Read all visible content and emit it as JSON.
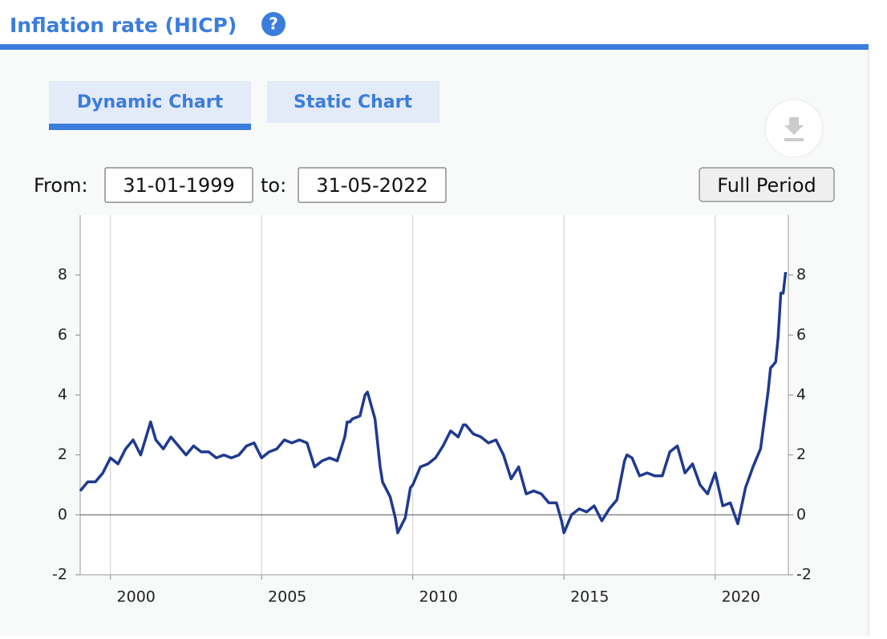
{
  "header": {
    "title": "Inflation rate (HICP)",
    "help": "?"
  },
  "tabs": [
    "Dynamic Chart",
    "Static Chart"
  ],
  "controls": {
    "from_label": "From:",
    "from": "31-01-1999",
    "to_label": "to:",
    "to": "31-05-2022",
    "button": "Full Period"
  },
  "chart_data": {
    "type": "line",
    "x": [
      1999.0,
      1999.25,
      1999.5,
      1999.75,
      2000.0,
      2000.25,
      2000.5,
      2000.75,
      2001.0,
      2001.33,
      2001.5,
      2001.75,
      2002.0,
      2002.25,
      2002.5,
      2002.75,
      2003.0,
      2003.25,
      2003.5,
      2003.75,
      2004.0,
      2004.25,
      2004.5,
      2004.75,
      2005.0,
      2005.25,
      2005.5,
      2005.75,
      2006.0,
      2006.25,
      2006.5,
      2006.75,
      2007.0,
      2007.25,
      2007.5,
      2007.75,
      2007.83,
      2007.92,
      2008.0,
      2008.25,
      2008.42,
      2008.5,
      2008.75,
      2008.92,
      2009.0,
      2009.25,
      2009.42,
      2009.5,
      2009.75,
      2009.92,
      2010.0,
      2010.25,
      2010.5,
      2010.75,
      2011.0,
      2011.25,
      2011.5,
      2011.67,
      2011.75,
      2012.0,
      2012.25,
      2012.5,
      2012.75,
      2013.0,
      2013.25,
      2013.5,
      2013.75,
      2014.0,
      2014.25,
      2014.5,
      2014.75,
      2014.92,
      2015.0,
      2015.25,
      2015.5,
      2015.75,
      2016.0,
      2016.25,
      2016.5,
      2016.75,
      2017.0,
      2017.08,
      2017.25,
      2017.5,
      2017.75,
      2018.0,
      2018.25,
      2018.5,
      2018.75,
      2019.0,
      2019.25,
      2019.5,
      2019.75,
      2020.0,
      2020.25,
      2020.5,
      2020.75,
      2021.0,
      2021.25,
      2021.5,
      2021.75,
      2021.83,
      2021.92,
      2022.0,
      2022.08,
      2022.17,
      2022.25,
      2022.33
    ],
    "series": [
      {
        "color": "#1f3a8f",
        "values": [
          0.8,
          1.1,
          1.1,
          1.4,
          1.9,
          1.7,
          2.2,
          2.5,
          2.0,
          3.1,
          2.5,
          2.2,
          2.6,
          2.3,
          2.0,
          2.3,
          2.1,
          2.1,
          1.9,
          2.0,
          1.9,
          2.0,
          2.3,
          2.4,
          1.9,
          2.1,
          2.2,
          2.5,
          2.4,
          2.5,
          2.4,
          1.6,
          1.8,
          1.9,
          1.8,
          2.6,
          3.1,
          3.1,
          3.2,
          3.3,
          4.0,
          4.1,
          3.2,
          1.6,
          1.1,
          0.6,
          -0.1,
          -0.6,
          -0.1,
          0.9,
          1.0,
          1.6,
          1.7,
          1.9,
          2.3,
          2.8,
          2.6,
          3.0,
          3.0,
          2.7,
          2.6,
          2.4,
          2.5,
          2.0,
          1.2,
          1.6,
          0.7,
          0.8,
          0.7,
          0.4,
          0.4,
          -0.2,
          -0.6,
          0.0,
          0.2,
          0.1,
          0.3,
          -0.2,
          0.2,
          0.5,
          1.8,
          2.0,
          1.9,
          1.3,
          1.4,
          1.3,
          1.3,
          2.1,
          2.3,
          1.4,
          1.7,
          1.0,
          0.7,
          1.4,
          0.3,
          0.4,
          -0.3,
          0.9,
          1.6,
          2.2,
          4.1,
          4.9,
          5.0,
          5.1,
          5.9,
          7.4,
          7.4,
          8.1
        ]
      }
    ],
    "xlim": [
      1999.0,
      2022.42
    ],
    "xticks": [
      2000,
      2005,
      2010,
      2015,
      2020
    ],
    "ylim": [
      -2,
      10
    ],
    "yticks": [
      -2,
      0,
      2,
      4,
      6,
      8
    ],
    "y2lim": [
      -2,
      10
    ],
    "y2ticks": [
      -2,
      0,
      2,
      4,
      6,
      8
    ],
    "grid": true
  }
}
